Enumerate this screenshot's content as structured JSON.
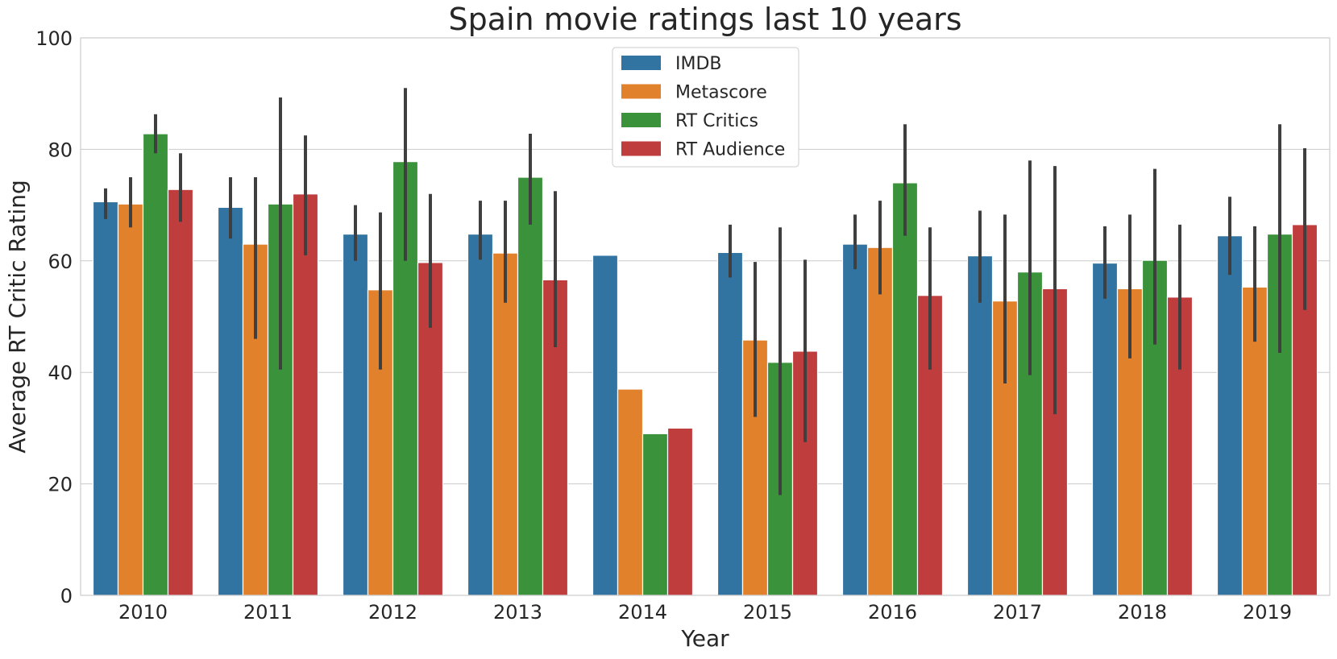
{
  "chart_data": {
    "type": "bar",
    "title": "Spain movie ratings last 10 years",
    "xlabel": "Year",
    "ylabel": "Average RT Critic Rating",
    "ylim": [
      0,
      100
    ],
    "yticks": [
      0,
      20,
      40,
      60,
      80,
      100
    ],
    "grid": "horizontal",
    "legend_position": "top-center",
    "categories": [
      "2010",
      "2011",
      "2012",
      "2013",
      "2014",
      "2015",
      "2016",
      "2017",
      "2018",
      "2019"
    ],
    "series": [
      {
        "name": "IMDB",
        "color": "#3274a1",
        "values": [
          70.6,
          69.6,
          64.8,
          64.8,
          61.0,
          61.5,
          63.0,
          60.9,
          59.6,
          64.5
        ],
        "err_low": [
          67.5,
          64.0,
          60.0,
          60.2,
          null,
          57.0,
          58.5,
          52.5,
          53.2,
          57.5
        ],
        "err_high": [
          73.0,
          75.0,
          70.0,
          70.8,
          null,
          66.5,
          68.3,
          69.0,
          66.2,
          71.5
        ]
      },
      {
        "name": "Metascore",
        "color": "#e1812c",
        "values": [
          70.2,
          63.0,
          54.8,
          61.4,
          37.0,
          45.8,
          62.4,
          52.8,
          55.0,
          55.3
        ],
        "err_low": [
          66.0,
          46.0,
          40.5,
          52.5,
          null,
          32.0,
          54.0,
          38.0,
          42.5,
          45.5
        ],
        "err_high": [
          75.0,
          75.0,
          68.7,
          70.8,
          null,
          59.8,
          70.8,
          68.3,
          68.3,
          66.2
        ]
      },
      {
        "name": "RT Critics",
        "color": "#3a923a",
        "values": [
          82.8,
          70.2,
          77.8,
          75.0,
          29.0,
          41.8,
          74.0,
          58.0,
          60.1,
          64.8
        ],
        "err_low": [
          79.3,
          40.5,
          60.0,
          66.5,
          null,
          18.0,
          64.5,
          39.5,
          45.0,
          43.5
        ],
        "err_high": [
          86.3,
          89.3,
          91.0,
          82.8,
          null,
          66.0,
          84.5,
          78.0,
          76.5,
          84.5
        ]
      },
      {
        "name": "RT Audience",
        "color": "#c03d3e",
        "values": [
          72.8,
          72.0,
          59.7,
          56.6,
          30.0,
          43.8,
          53.8,
          55.0,
          53.5,
          66.5
        ],
        "err_low": [
          67.0,
          61.0,
          48.0,
          44.5,
          null,
          27.5,
          40.5,
          32.5,
          40.5,
          51.2
        ],
        "err_high": [
          79.3,
          82.5,
          72.0,
          72.5,
          null,
          60.2,
          66.0,
          77.0,
          66.5,
          80.2
        ]
      }
    ]
  }
}
